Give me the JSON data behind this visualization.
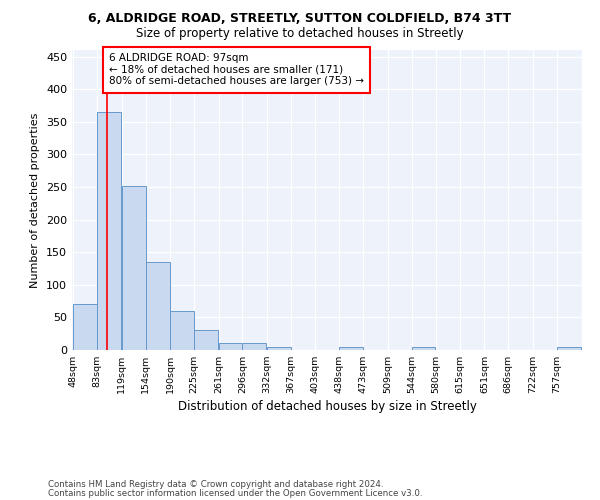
{
  "title1": "6, ALDRIDGE ROAD, STREETLY, SUTTON COLDFIELD, B74 3TT",
  "title2": "Size of property relative to detached houses in Streetly",
  "xlabel": "Distribution of detached houses by size in Streetly",
  "ylabel": "Number of detached properties",
  "footnote1": "Contains HM Land Registry data © Crown copyright and database right 2024.",
  "footnote2": "Contains public sector information licensed under the Open Government Licence v3.0.",
  "bar_edges": [
    48,
    83,
    119,
    154,
    190,
    225,
    261,
    296,
    332,
    367,
    403,
    438,
    473,
    509,
    544,
    580,
    615,
    651,
    686,
    722,
    757
  ],
  "bar_heights": [
    70,
    365,
    252,
    135,
    60,
    30,
    10,
    10,
    5,
    0,
    0,
    5,
    0,
    0,
    4,
    0,
    0,
    0,
    0,
    0,
    4
  ],
  "bar_color": "#c9daf0",
  "bar_edge_color": "#6699cc",
  "red_line_x": 97,
  "annotation_line1": "6 ALDRIDGE ROAD: 97sqm",
  "annotation_line2": "← 18% of detached houses are smaller (171)",
  "annotation_line3": "80% of semi-detached houses are larger (753) →",
  "ylim": [
    0,
    460
  ],
  "yticks": [
    0,
    50,
    100,
    150,
    200,
    250,
    300,
    350,
    400,
    450
  ],
  "background_color": "#eef2fb",
  "grid_color": "#ffffff"
}
